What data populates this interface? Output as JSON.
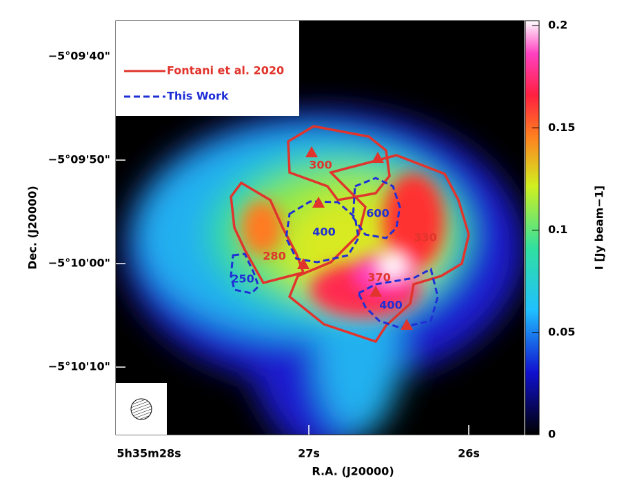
{
  "chart_data": {
    "type": "image",
    "xlabel": "R.A. (J20000)",
    "ylabel": "Dec. (J20000)",
    "xlim": [
      28.207,
      25.655
    ],
    "xticks": [
      {
        "value": 28,
        "label": "5h35m28s"
      },
      {
        "value": 27,
        "label": "27s"
      },
      {
        "value": 26,
        "label": "26s"
      }
    ],
    "ylim": [
      76.53,
      36.53
    ],
    "yticks": [
      {
        "value": 40,
        "label": "−5°09'40\""
      },
      {
        "value": 50,
        "label": "−5°09'50\""
      },
      {
        "value": 60,
        "label": "−5°10'00\""
      },
      {
        "value": 70,
        "label": "−5°10'10\""
      }
    ],
    "colorbar": {
      "label": "I [Jy beam−1]",
      "lim": [
        0,
        0.2
      ],
      "ticks": [
        0,
        0.05,
        0.1,
        0.15,
        0.2
      ]
    },
    "series": [
      {
        "name": "Fontani et al. 2020",
        "color": "#e0342c"
      },
      {
        "name": "This Work",
        "color": "#1f2fd6"
      }
    ],
    "annotations": [
      {
        "text": "300",
        "color": "#e0342c"
      },
      {
        "text": "280",
        "color": "#e0342c"
      },
      {
        "text": "370",
        "color": "#e0342c"
      },
      {
        "text": "330",
        "color": "#e0342c"
      },
      {
        "text": "250",
        "color": "#1f2fd6"
      },
      {
        "text": "400",
        "color": "#1f2fd6"
      },
      {
        "text": "600",
        "color": "#1f2fd6"
      },
      {
        "text": "400",
        "color": "#1f2fd6"
      }
    ]
  }
}
